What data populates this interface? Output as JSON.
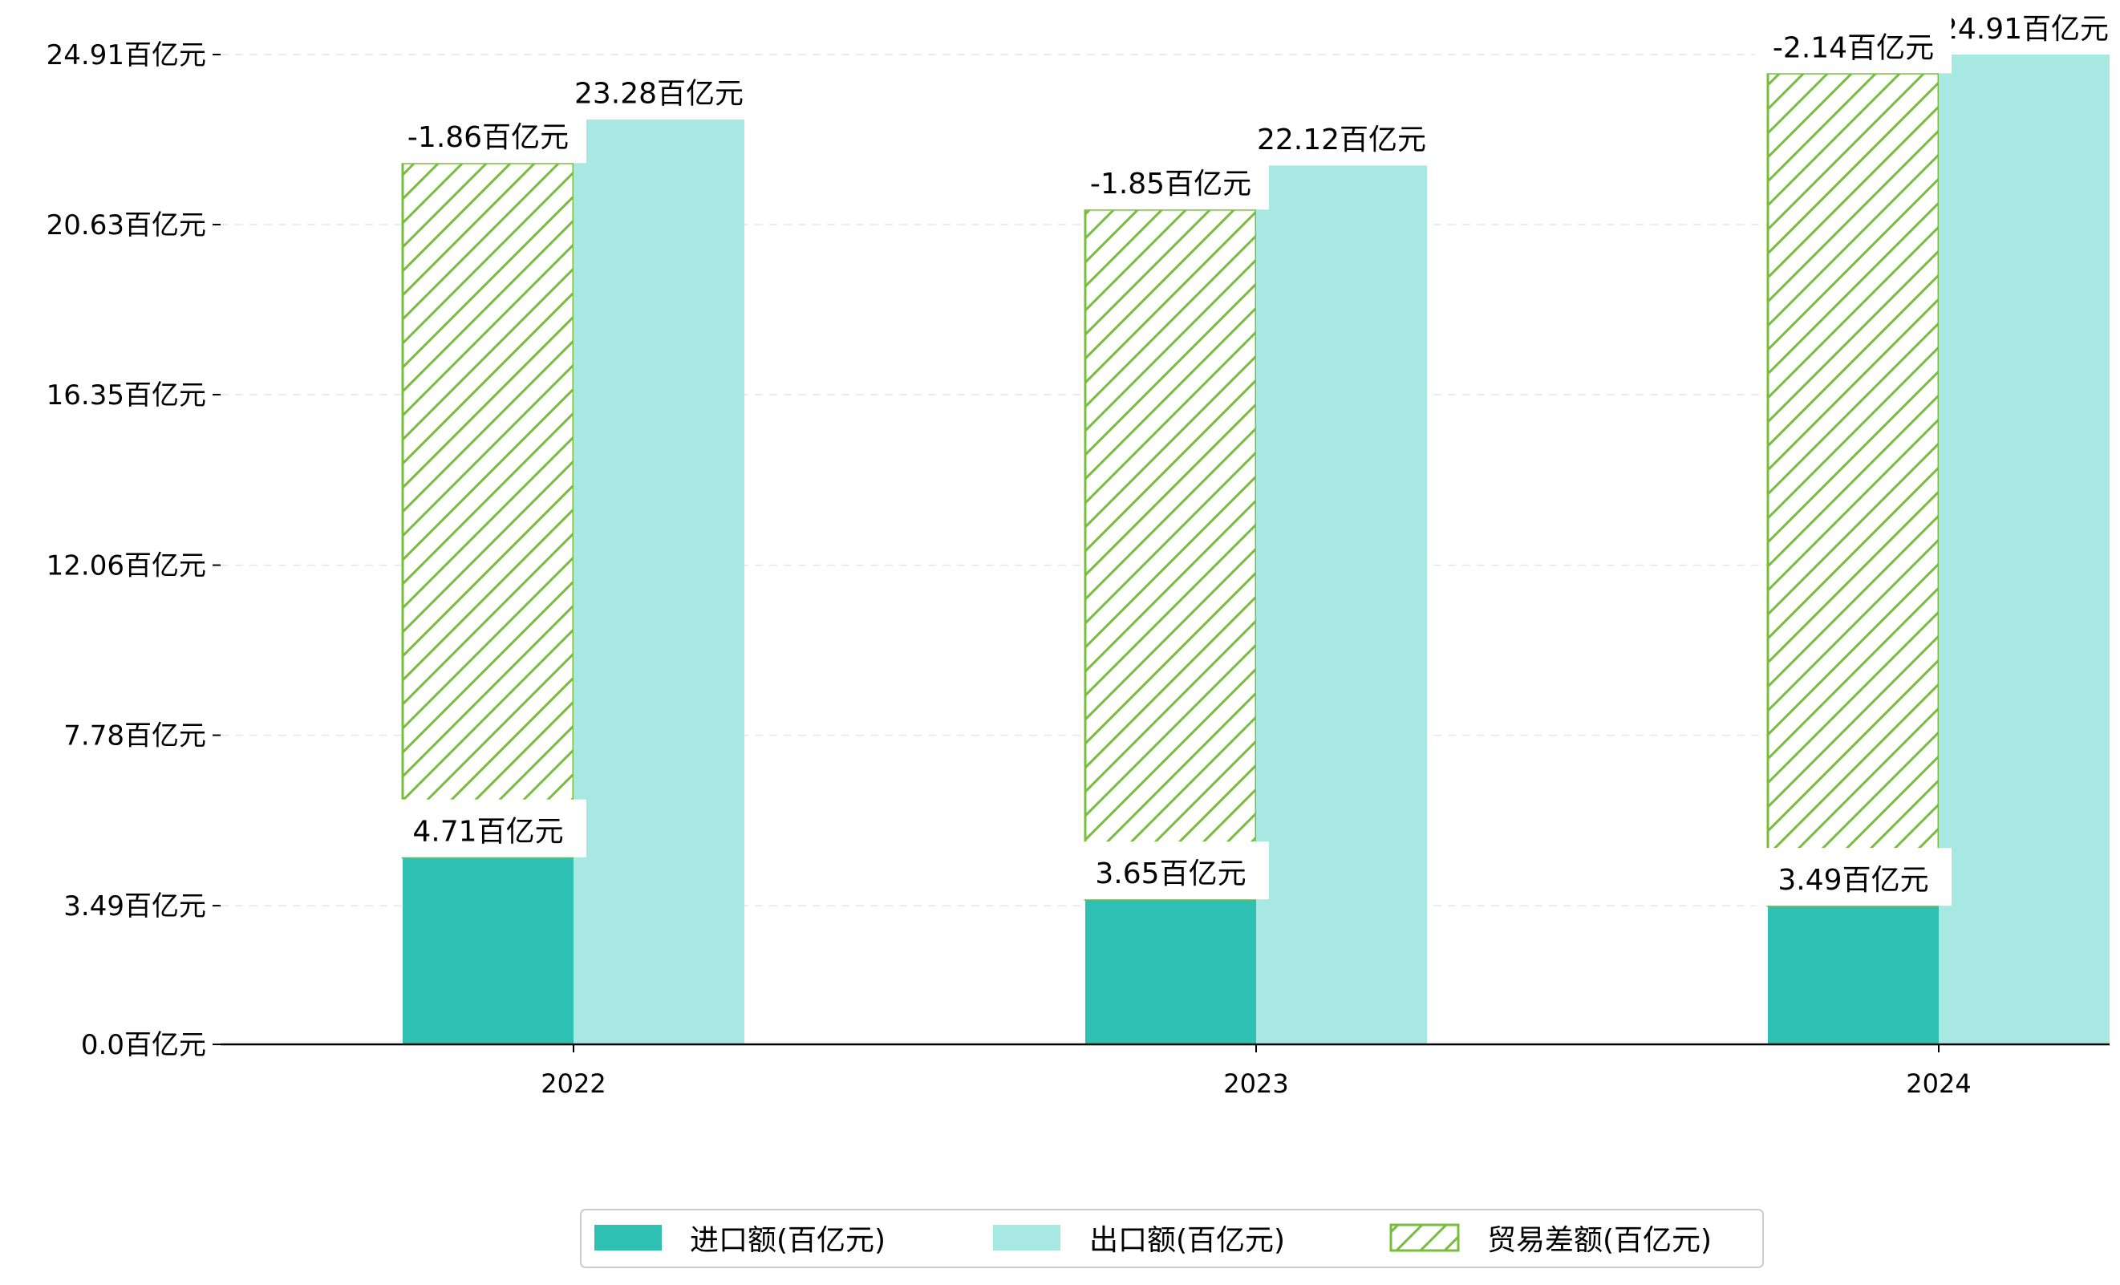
{
  "chart_data": {
    "type": "bar",
    "categories": [
      "2022",
      "2023",
      "2024"
    ],
    "series": [
      {
        "name": "进口额(百亿元)",
        "values": [
          4.71,
          3.65,
          3.49
        ],
        "labels": [
          "4.71百亿元",
          "3.65百亿元",
          "3.49百亿元"
        ],
        "color": "#2ec0b2",
        "pattern": "solid"
      },
      {
        "name": "出口额(百亿元)",
        "values": [
          23.28,
          22.12,
          24.91
        ],
        "labels": [
          "23.28百亿元",
          "22.12百亿元",
          "24.91百亿元"
        ],
        "color": "#a8e8e2",
        "pattern": "solid"
      },
      {
        "name": "贸易差额(百亿元)",
        "values": [
          -1.86,
          -1.85,
          -2.14
        ],
        "labels": [
          "-1.86百亿元",
          "-1.85百亿元",
          "-2.14百亿元"
        ],
        "color": "#78be3c",
        "pattern": "hatch",
        "stacked_top": [
          22.18,
          21.01,
          24.44
        ]
      }
    ],
    "yticks": [
      0.0,
      3.49,
      7.78,
      12.06,
      16.35,
      20.63,
      24.91
    ],
    "ytick_labels": [
      "0.0百亿元",
      "3.49百亿元",
      "7.78百亿元",
      "12.06百亿元",
      "16.35百亿元",
      "20.63百亿元",
      "24.91百亿元"
    ],
    "ylim": [
      0,
      24.91
    ],
    "xlabel": "",
    "ylabel": "",
    "title": "",
    "grid": "horizontal-dashed",
    "legend_position": "bottom-center"
  }
}
